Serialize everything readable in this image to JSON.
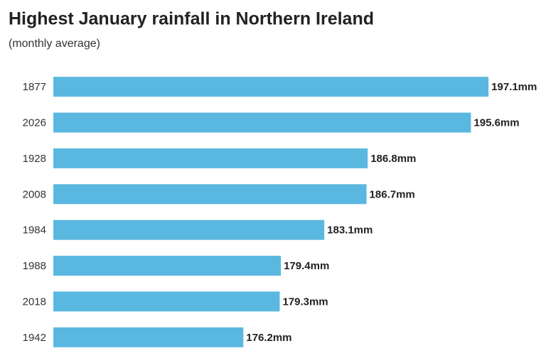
{
  "chart_data": {
    "type": "bar",
    "orientation": "horizontal",
    "title": "Highest January rainfall in Northern Ireland",
    "subtitle": "(monthly average)",
    "categories": [
      "1877",
      "2026",
      "1928",
      "2008",
      "1984",
      "1988",
      "2018",
      "1942"
    ],
    "values": [
      197.1,
      195.6,
      186.8,
      186.7,
      183.1,
      179.4,
      179.3,
      176.2
    ],
    "value_labels": [
      "197.1mm",
      "195.6mm",
      "186.8mm",
      "186.7mm",
      "183.1mm",
      "179.4mm",
      "179.3mm",
      "176.2mm"
    ],
    "color": "#5ab8e0",
    "xlim": [
      160,
      200
    ]
  }
}
